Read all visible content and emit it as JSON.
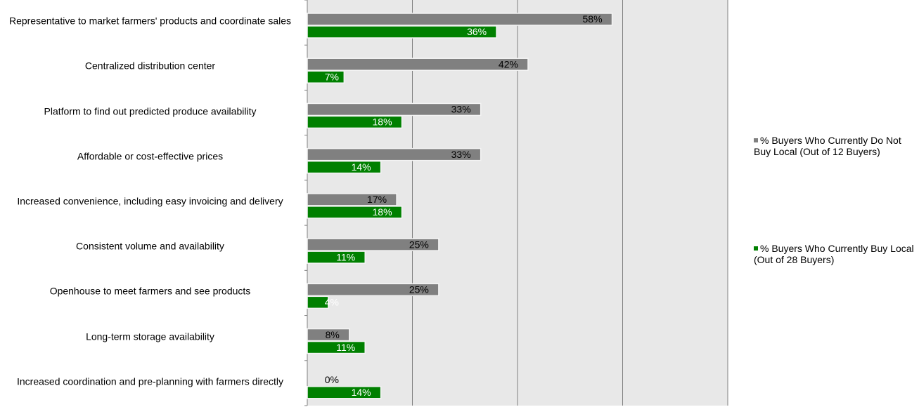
{
  "chart_data": {
    "type": "bar",
    "orientation": "horizontal",
    "categories": [
      "Representative to market farmers' products and coordinate sales",
      "Centralized distribution center",
      "Platform to find out predicted  produce availability",
      "Affordable or cost-effective  prices",
      "Increased convenience, including easy invoicing and delivery",
      "Consistent volume and availability",
      "Openhouse to meet farmers and see products",
      "Long-term storage availability",
      "Increased coordination and pre-planning with farmers directly"
    ],
    "series": [
      {
        "name": "% Buyers Who Currently Do Not Buy Local (Out of 12 Buyers)",
        "color": "#808080",
        "label_color": "#000000",
        "values": [
          58,
          42,
          33,
          33,
          17,
          25,
          25,
          8,
          0
        ],
        "value_labels": [
          "58%",
          "42%",
          "33%",
          "33%",
          "17%",
          "25%",
          "25%",
          "8%",
          "0%"
        ]
      },
      {
        "name": "% Buyers Who Currently Buy Local (Out of 28 Buyers)",
        "color": "#008000",
        "label_color": "#ffffff",
        "values": [
          36,
          7,
          18,
          14,
          18,
          11,
          4,
          11,
          14
        ],
        "value_labels": [
          "36%",
          "7%",
          "18%",
          "14%",
          "18%",
          "11%",
          "4%",
          "11%",
          "14%"
        ]
      }
    ],
    "xlim": [
      0,
      80
    ],
    "xticks": [
      0,
      20,
      40,
      60,
      80
    ],
    "grid": true,
    "legend": "right"
  }
}
